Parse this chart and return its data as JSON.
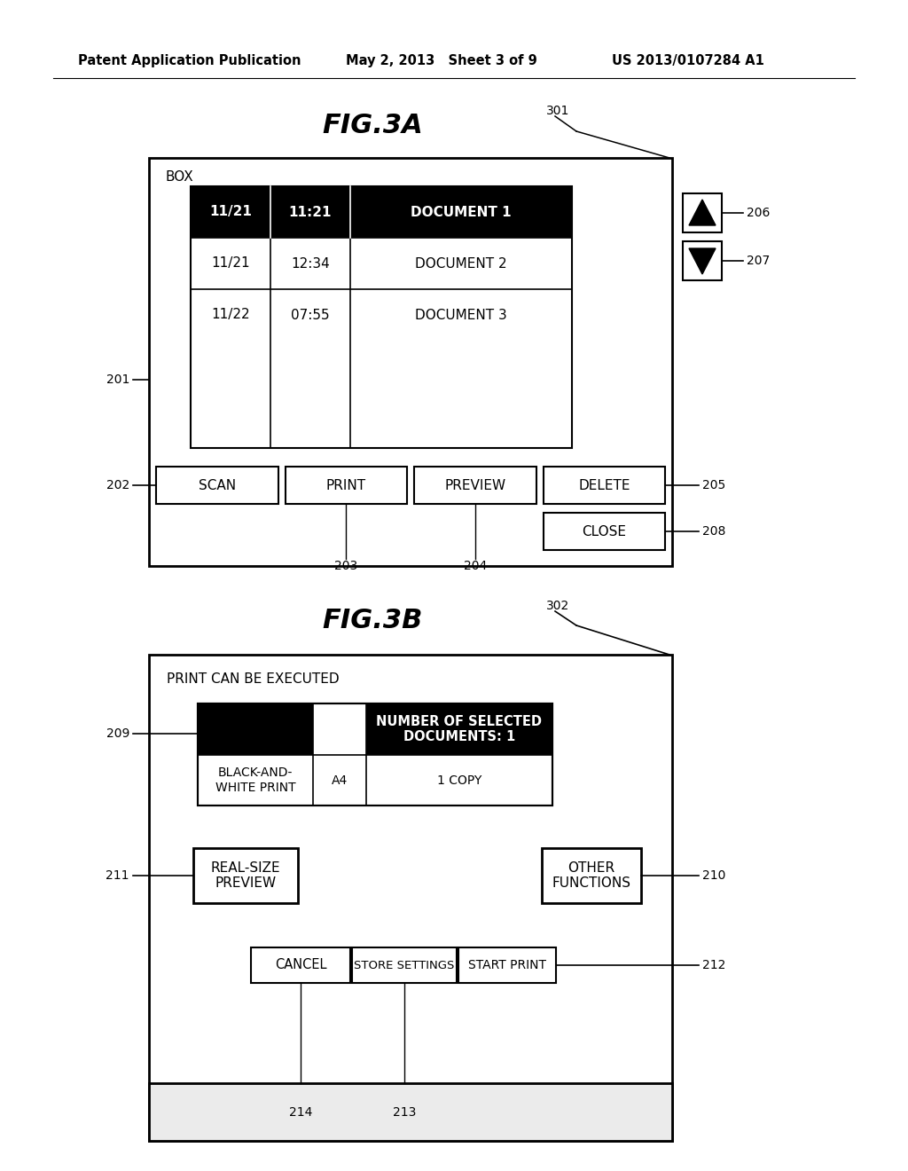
{
  "header_left": "Patent Application Publication",
  "header_mid": "May 2, 2013   Sheet 3 of 9",
  "header_right": "US 2013/0107284 A1",
  "fig3a_title": "FIG.3A",
  "fig3b_title": "FIG.3B",
  "ref301": "301",
  "ref302": "302",
  "ref201": "201",
  "ref202": "202",
  "ref203": "203",
  "ref204": "204",
  "ref205": "205",
  "ref206": "206",
  "ref207": "207",
  "ref208": "208",
  "ref209": "209",
  "ref210": "210",
  "ref211": "211",
  "ref212": "212",
  "ref213": "213",
  "ref214": "214",
  "bg_color": "#ffffff",
  "text_color": "#000000"
}
